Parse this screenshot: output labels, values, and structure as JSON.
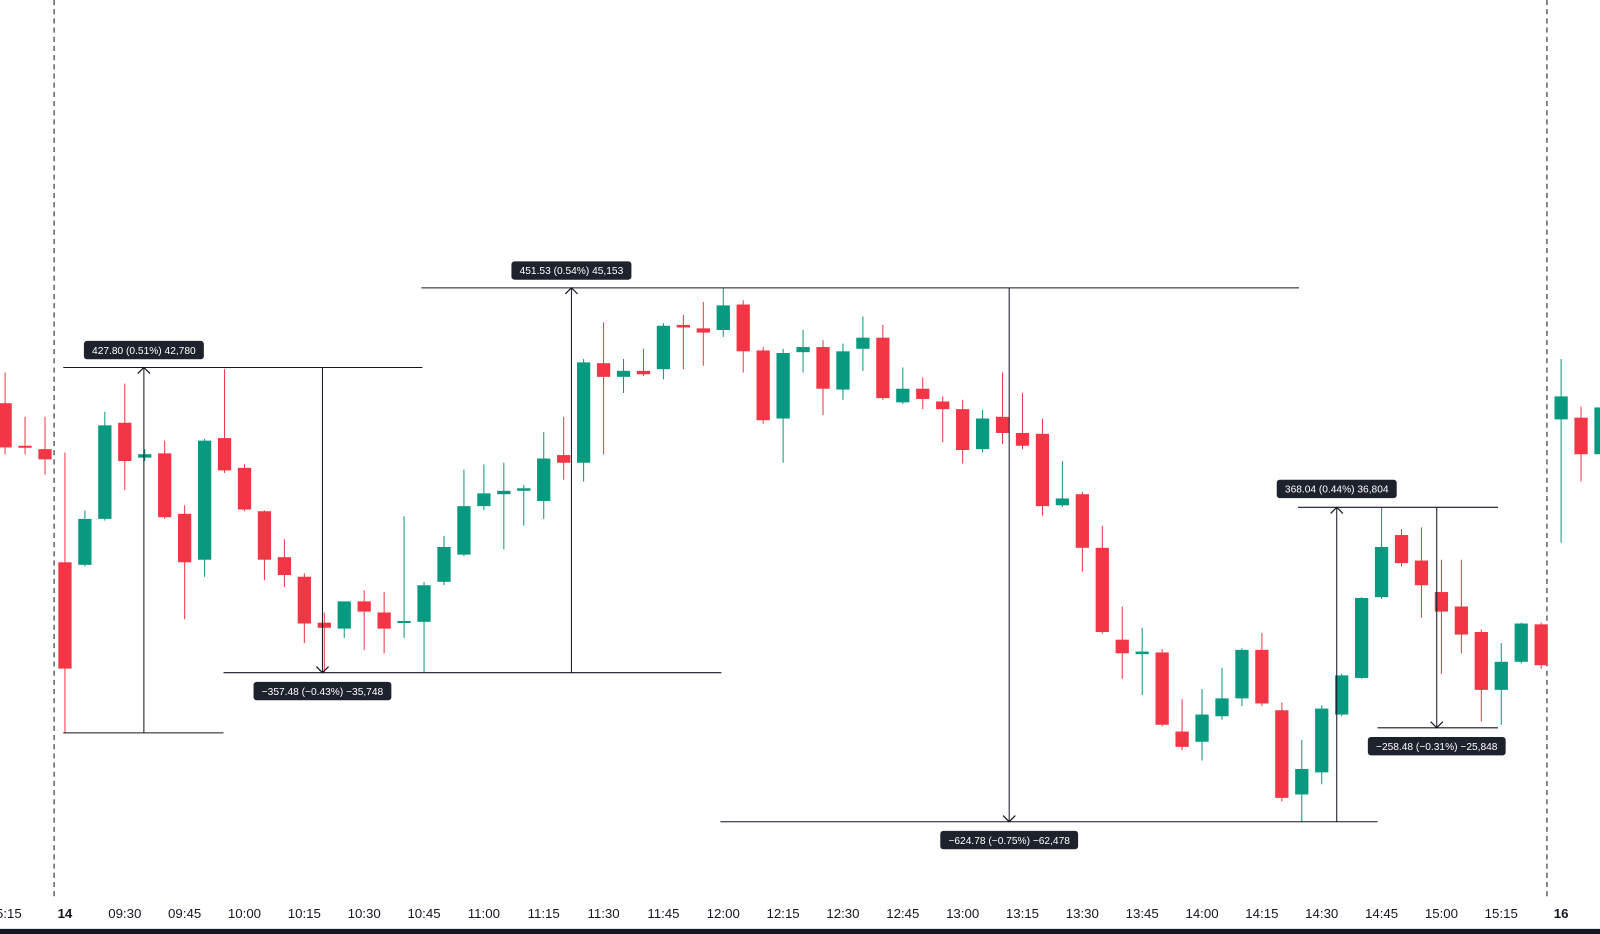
{
  "chart_data": {
    "type": "candlestick",
    "categories": [
      "15:15",
      null,
      null,
      "14",
      null,
      null,
      "09:30",
      null,
      null,
      "09:45",
      null,
      null,
      "10:00",
      null,
      null,
      "10:15",
      null,
      null,
      "10:30",
      null,
      null,
      "10:45",
      null,
      null,
      "11:00",
      null,
      null,
      "11:15",
      null,
      null,
      "11:30",
      null,
      null,
      "11:45",
      null,
      null,
      "12:00",
      null,
      null,
      "12:15",
      null,
      null,
      "12:30",
      null,
      null,
      "12:45",
      null,
      null,
      "13:00",
      null,
      null,
      "13:15",
      null,
      null,
      "13:30",
      null,
      null,
      "13:45",
      null,
      null,
      "14:00",
      null,
      null,
      "14:15",
      null,
      null,
      "14:30",
      null,
      null,
      "14:45",
      null,
      null,
      "15:00",
      null,
      null,
      "15:15",
      null,
      null,
      "16",
      null,
      null
    ],
    "open": [
      83944,
      83894,
      83890,
      83757,
      83754,
      83808,
      83921,
      83880,
      83885,
      83814,
      83760,
      83903,
      83868,
      83817,
      83763,
      83740,
      83686,
      83679,
      83711,
      83698,
      83686,
      83687,
      83734,
      83766,
      83823,
      83837,
      83841,
      83829,
      83883,
      83874,
      83991,
      83975,
      83982,
      83984,
      84036,
      84032,
      84030,
      84060,
      84006,
      83926,
      84004,
      84010,
      83960,
      84008,
      84021,
      83945,
      83961,
      83946,
      83937,
      83890,
      83928,
      83909,
      83908,
      83824,
      83837,
      83774,
      83666,
      83649,
      83651,
      83558,
      83546,
      83576,
      83597,
      83654,
      83583,
      83484,
      83510,
      83578,
      83621,
      83716,
      83789,
      83759,
      83722,
      83705,
      83675,
      83607,
      83640,
      83684,
      83925,
      83927,
      83884
    ],
    "high": [
      83980,
      83928,
      83928,
      83886,
      83818,
      83934,
      83967,
      83890,
      83900,
      83824,
      83902,
      83984,
      83872,
      83818,
      83784,
      83744,
      83698,
      83711,
      83724,
      83722,
      83811,
      83734,
      83788,
      83866,
      83872,
      83874,
      83848,
      83910,
      83928,
      83996,
      84039,
      83996,
      84008,
      84038,
      84048,
      84063,
      84080,
      84065,
      84010,
      84008,
      84030,
      84018,
      84014,
      84046,
      84036,
      83986,
      83974,
      83952,
      83948,
      83936,
      83980,
      83956,
      83926,
      83876,
      83840,
      83800,
      83705,
      83680,
      83655,
      83596,
      83608,
      83633,
      83656,
      83674,
      83592,
      83548,
      83589,
      83626,
      83716,
      83822,
      83796,
      83798,
      83760,
      83760,
      83678,
      83662,
      83686,
      83686,
      83996,
      83940,
      83950
    ],
    "low": [
      83884,
      83884,
      83860,
      83556,
      83752,
      83806,
      83842,
      83876,
      83808,
      83690,
      83740,
      83862,
      83817,
      83736,
      83728,
      83662,
      83627,
      83668,
      83654,
      83650,
      83668,
      83627,
      83730,
      83764,
      83818,
      83772,
      83800,
      83808,
      83854,
      83852,
      83884,
      83956,
      83976,
      83972,
      83984,
      83988,
      84022,
      83980,
      83920,
      83874,
      83980,
      83930,
      83948,
      83982,
      83948,
      83943,
      83937,
      83898,
      83873,
      83886,
      83896,
      83890,
      83812,
      83822,
      83746,
      83673,
      83620,
      83601,
      83564,
      83536,
      83524,
      83572,
      83588,
      83588,
      83476,
      83452,
      83496,
      83576,
      83620,
      83714,
      83752,
      83692,
      83626,
      83650,
      83570,
      83566,
      83638,
      83632,
      83780,
      83852,
      83852
    ],
    "close": [
      83892,
      83892,
      83878,
      83632,
      83808,
      83918,
      83876,
      83884,
      83810,
      83757,
      83900,
      83865,
      83819,
      83760,
      83742,
      83685,
      83680,
      83711,
      83699,
      83679,
      83688,
      83730,
      83775,
      83823,
      83838,
      83841,
      83844,
      83879,
      83874,
      83992,
      83975,
      83982,
      83978,
      84035,
      84033,
      84027,
      84059,
      84005,
      83924,
      84003,
      84010,
      83961,
      84005,
      84021,
      83950,
      83961,
      83949,
      83937,
      83889,
      83926,
      83909,
      83894,
      83823,
      83832,
      83774,
      83675,
      83650,
      83652,
      83566,
      83540,
      83578,
      83597,
      83654,
      83591,
      83480,
      83514,
      83585,
      83624,
      83715,
      83775,
      83756,
      83730,
      83699,
      83672,
      83607,
      83640,
      83685,
      83636,
      83952,
      83884,
      83939
    ],
    "up_color": "#089981",
    "down_color": "#f23645",
    "ylim": [
      83320,
      84418
    ],
    "annotations": [
      "427.80 (0.51%) 42,780",
      "−357.48 (−0.43%) −35,748",
      "451.53 (0.54%) 45,153",
      "−624.78 (−0.75%) −62,478",
      "368.04 (0.44%) 36,804",
      "−258.48 (−0.31%) −25,848"
    ]
  }
}
